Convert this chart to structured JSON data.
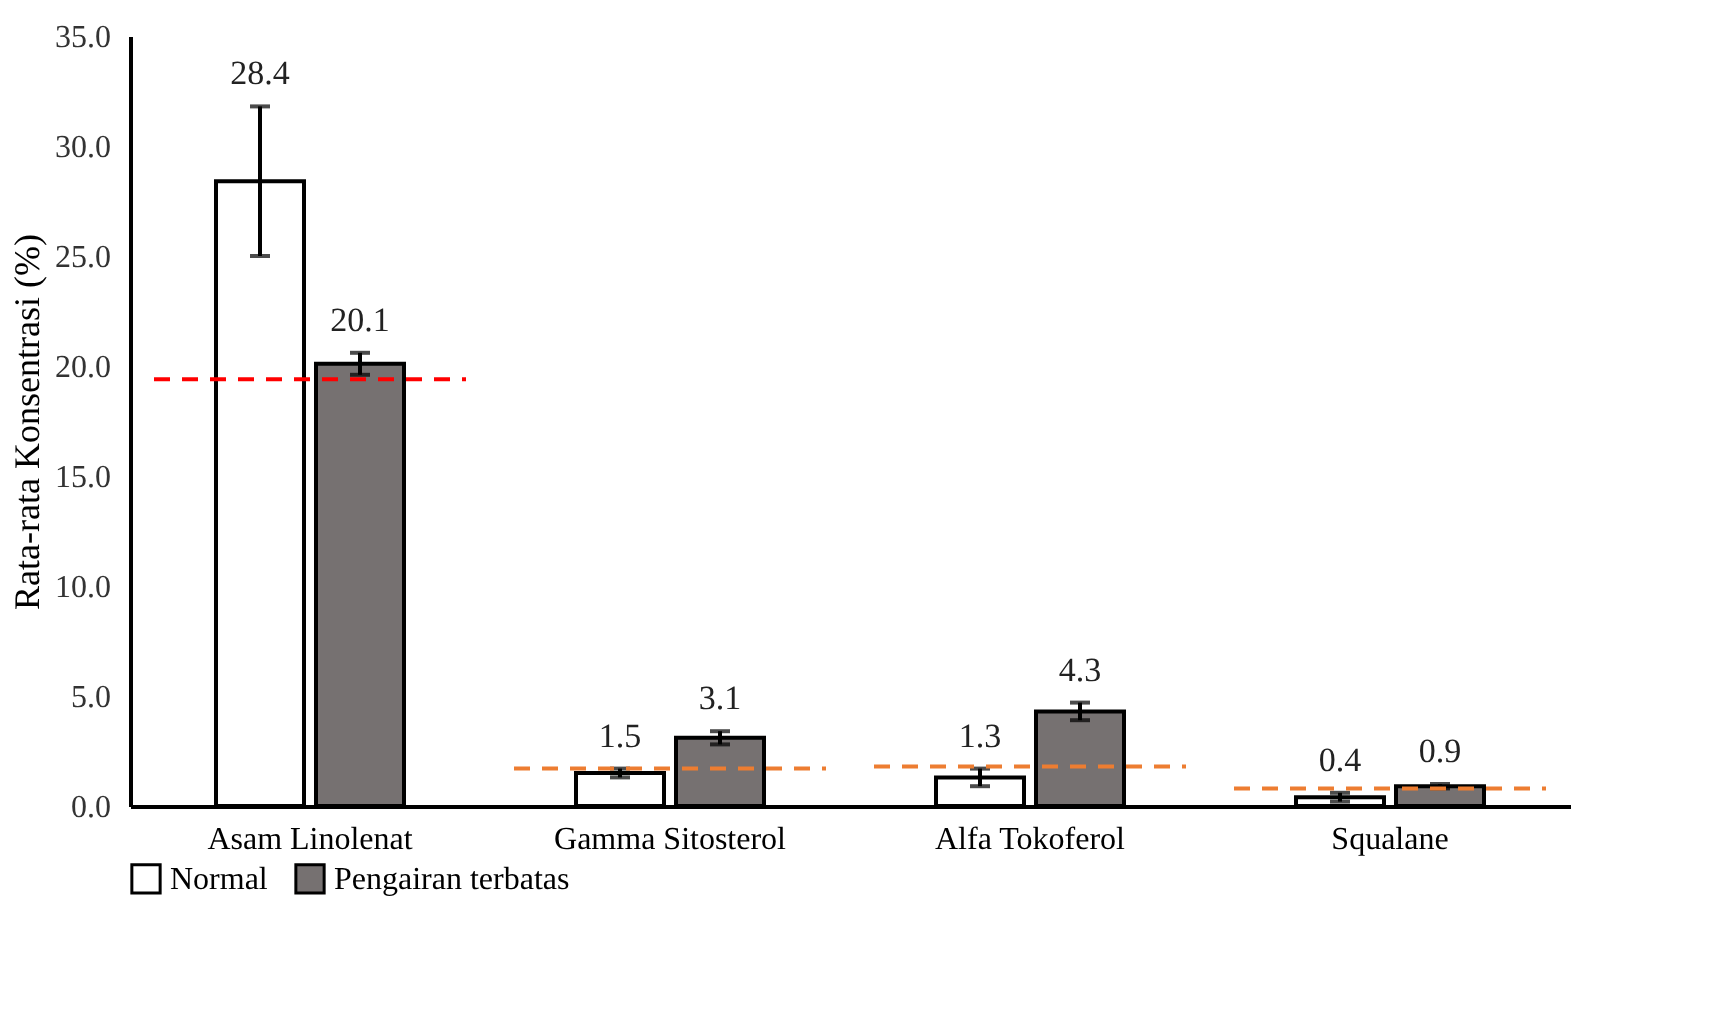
{
  "chart_data": {
    "type": "bar",
    "ylabel": "Rata-rata Konsentrasi (%)",
    "categories": [
      "Asam Linolenat",
      "Gamma Sitosterol",
      "Alfa Tokoferol",
      "Squalane"
    ],
    "series": [
      {
        "name": "Normal",
        "color": "#ffffff",
        "values": [
          28.4,
          1.5,
          1.3,
          0.4
        ],
        "errors": [
          3.4,
          0.2,
          0.4,
          0.2
        ]
      },
      {
        "name": "Pengairan terbatas",
        "color": "#767171",
        "values": [
          20.1,
          3.1,
          4.3,
          0.9
        ],
        "errors": [
          0.5,
          0.3,
          0.4,
          0.1
        ]
      }
    ],
    "ylim": [
      0,
      35
    ],
    "yticks": [
      {
        "value": 0,
        "label": "0.0"
      },
      {
        "value": 5,
        "label": "5.0"
      },
      {
        "value": 10,
        "label": "10.0"
      },
      {
        "value": 15,
        "label": "15.0"
      },
      {
        "value": 20,
        "label": "20.0"
      },
      {
        "value": 25,
        "label": "25.0"
      },
      {
        "value": 30,
        "label": "30.0"
      },
      {
        "value": 35,
        "label": "35.0"
      }
    ],
    "ref_lines": [
      {
        "axis": "y",
        "value": 19.4,
        "color": "#ff0000",
        "line_style": "dashed"
      },
      {
        "axis": "y",
        "value": 1.7,
        "color": "#ed7d31",
        "line_style": "dashed"
      },
      {
        "axis": "y",
        "value": 1.8,
        "color": "#ed7d31",
        "line_style": "dashed"
      },
      {
        "axis": "y",
        "value": 0.8,
        "color": "#ed7d31",
        "line_style": "dashed"
      }
    ],
    "data_labels": true,
    "grid": false,
    "legend": "bottom"
  }
}
